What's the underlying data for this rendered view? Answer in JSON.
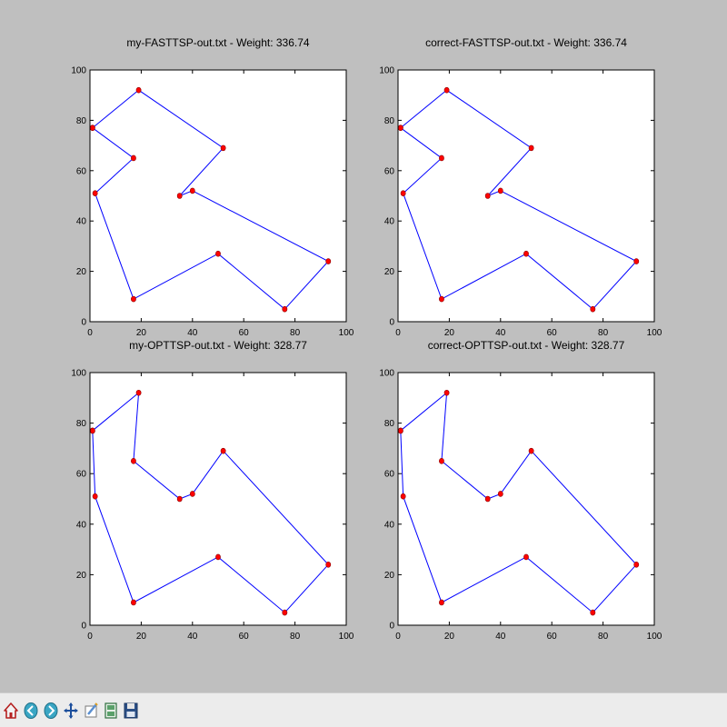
{
  "colors": {
    "figure_background": "#bfbfbf",
    "axes_background": "#ffffff",
    "line": "#0000ff",
    "marker_fill": "#ff0000",
    "marker_edge": "#8b0000",
    "toolbar_background": "#ececec"
  },
  "chart_data": [
    {
      "type": "line",
      "title": "my-FASTTSP-out.txt - Weight: 336.74",
      "xlim": [
        0,
        100
      ],
      "ylim": [
        0,
        100
      ],
      "xticks": [
        0,
        20,
        40,
        60,
        80,
        100
      ],
      "yticks": [
        0,
        20,
        40,
        60,
        80,
        100
      ],
      "grid": false,
      "markers": true,
      "closed": true,
      "series": [
        {
          "x": [
            1,
            19,
            52,
            35,
            40,
            93,
            76,
            50,
            17,
            2,
            17,
            1
          ],
          "y": [
            77,
            92,
            69,
            50,
            52,
            24,
            5,
            27,
            9,
            51,
            65,
            77
          ]
        }
      ]
    },
    {
      "type": "line",
      "title": "correct-FASTTSP-out.txt - Weight: 336.74",
      "xlim": [
        0,
        100
      ],
      "ylim": [
        0,
        100
      ],
      "xticks": [
        0,
        20,
        40,
        60,
        80,
        100
      ],
      "yticks": [
        0,
        20,
        40,
        60,
        80,
        100
      ],
      "grid": false,
      "markers": true,
      "closed": true,
      "series": [
        {
          "x": [
            1,
            19,
            52,
            35,
            40,
            93,
            76,
            50,
            17,
            2,
            17,
            1
          ],
          "y": [
            77,
            92,
            69,
            50,
            52,
            24,
            5,
            27,
            9,
            51,
            65,
            77
          ]
        }
      ]
    },
    {
      "type": "line",
      "title": "my-OPTTSP-out.txt - Weight: 328.77",
      "xlim": [
        0,
        100
      ],
      "ylim": [
        0,
        100
      ],
      "xticks": [
        0,
        20,
        40,
        60,
        80,
        100
      ],
      "yticks": [
        0,
        20,
        40,
        60,
        80,
        100
      ],
      "grid": false,
      "markers": true,
      "closed": true,
      "series": [
        {
          "x": [
            1,
            19,
            17,
            35,
            40,
            52,
            93,
            76,
            50,
            17,
            2,
            1
          ],
          "y": [
            77,
            92,
            65,
            50,
            52,
            69,
            24,
            5,
            27,
            9,
            51,
            77
          ]
        }
      ]
    },
    {
      "type": "line",
      "title": "correct-OPTTSP-out.txt - Weight: 328.77",
      "xlim": [
        0,
        100
      ],
      "ylim": [
        0,
        100
      ],
      "xticks": [
        0,
        20,
        40,
        60,
        80,
        100
      ],
      "yticks": [
        0,
        20,
        40,
        60,
        80,
        100
      ],
      "grid": false,
      "markers": true,
      "closed": true,
      "series": [
        {
          "x": [
            1,
            19,
            17,
            35,
            40,
            52,
            93,
            76,
            50,
            17,
            2,
            1
          ],
          "y": [
            77,
            92,
            65,
            50,
            52,
            69,
            24,
            5,
            27,
            9,
            51,
            77
          ]
        }
      ]
    }
  ],
  "toolbar": {
    "buttons": [
      {
        "name": "home-button",
        "icon": "home-icon"
      },
      {
        "name": "back-button",
        "icon": "back-arrow-icon"
      },
      {
        "name": "forward-button",
        "icon": "forward-arrow-icon"
      },
      {
        "name": "pan-button",
        "icon": "move-arrows-icon"
      },
      {
        "name": "zoom-button",
        "icon": "zoom-rect-icon"
      },
      {
        "name": "configure-subplots-button",
        "icon": "subplots-icon"
      },
      {
        "name": "save-button",
        "icon": "floppy-disk-icon"
      }
    ]
  }
}
